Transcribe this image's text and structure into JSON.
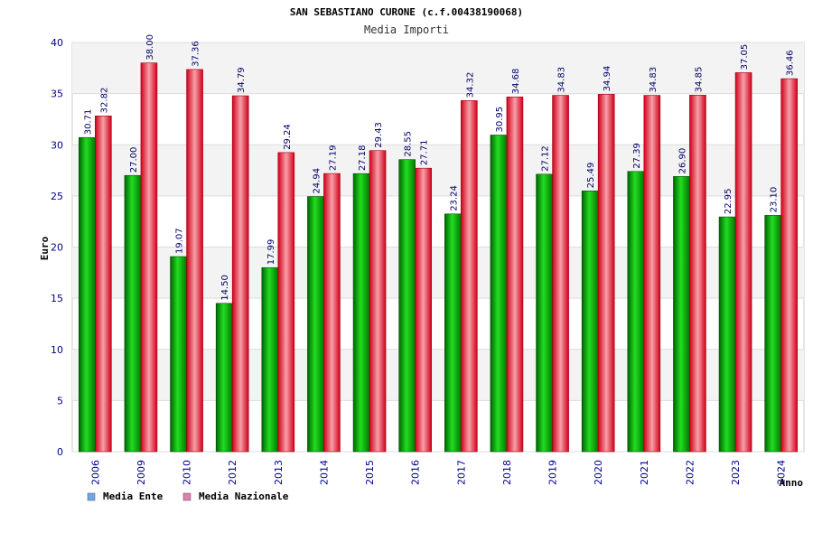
{
  "chart_data": {
    "type": "bar",
    "title": "SAN SEBASTIANO CURONE (c.f.00438190068)",
    "subtitle": "Media Importi",
    "xlabel": "Anno",
    "ylabel": "Euro",
    "ylim": [
      0,
      40
    ],
    "yticks": [
      0,
      5,
      10,
      15,
      20,
      25,
      30,
      35,
      40
    ],
    "grid": true,
    "legend": "bottom-left",
    "categories": [
      "2006",
      "2009",
      "2010",
      "2012",
      "2013",
      "2014",
      "2015",
      "2016",
      "2017",
      "2018",
      "2019",
      "2020",
      "2021",
      "2022",
      "2023",
      "2024"
    ],
    "series": [
      {
        "name": "Media Ente",
        "color": "#00b000",
        "legend_color": "#6fa8e8",
        "values": [
          30.71,
          27.0,
          19.07,
          14.5,
          17.99,
          24.94,
          27.18,
          28.55,
          23.24,
          30.95,
          27.12,
          25.49,
          27.39,
          26.9,
          22.95,
          23.1
        ],
        "labels": [
          "30.71",
          "27.00",
          "19.07",
          "14.50",
          "17.99",
          "24.94",
          "27.18",
          "28.55",
          "23.24",
          "30.95",
          "27.12",
          "25.49",
          "27.39",
          "26.90",
          "22.95",
          "23.10"
        ]
      },
      {
        "name": "Media Nazionale",
        "color": "#e8101c",
        "legend_color": "#e07fb0",
        "values": [
          32.82,
          38.0,
          37.36,
          34.79,
          29.24,
          27.19,
          29.43,
          27.71,
          34.32,
          34.68,
          34.83,
          34.94,
          34.83,
          34.85,
          37.05,
          36.46
        ],
        "labels": [
          "32.82",
          "38.00",
          "37.36",
          "34.79",
          "29.24",
          "27.19",
          "29.43",
          "27.71",
          "34.32",
          "34.68",
          "34.83",
          "34.94",
          "34.83",
          "34.85",
          "37.05",
          "36.46"
        ]
      }
    ]
  }
}
